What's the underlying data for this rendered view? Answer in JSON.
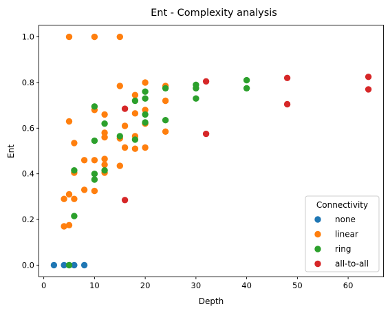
{
  "chart_data": {
    "type": "scatter",
    "title": "Ent - Complexity analysis",
    "xlabel": "Depth",
    "ylabel": "Ent",
    "xlim": [
      -0.9,
      66.9
    ],
    "ylim": [
      -0.05,
      1.05
    ],
    "xticks": [
      0,
      10,
      20,
      30,
      40,
      50,
      60
    ],
    "yticks": [
      0.0,
      0.2,
      0.4,
      0.6,
      0.8,
      1.0
    ],
    "xtick_labels": [
      "0",
      "10",
      "20",
      "30",
      "40",
      "50",
      "60"
    ],
    "ytick_labels": [
      "0.0",
      "0.2",
      "0.4",
      "0.6",
      "0.8",
      "1.0"
    ],
    "grid": false,
    "legend": {
      "title": "Connectivity",
      "placement": "lower-right"
    },
    "series": [
      {
        "name": "none",
        "color": "#1f77b4",
        "points": [
          [
            2,
            0.0
          ],
          [
            4,
            0.0
          ],
          [
            5,
            0.0
          ],
          [
            6,
            0.0
          ],
          [
            8,
            0.0
          ]
        ]
      },
      {
        "name": "linear",
        "color": "#ff7f0e",
        "points": [
          [
            4,
            0.29
          ],
          [
            4,
            0.17
          ],
          [
            5,
            1.0
          ],
          [
            5,
            0.63
          ],
          [
            5,
            0.31
          ],
          [
            5,
            0.175
          ],
          [
            6,
            0.535
          ],
          [
            6,
            0.405
          ],
          [
            6,
            0.29
          ],
          [
            8,
            0.46
          ],
          [
            8,
            0.33
          ],
          [
            10,
            1.0
          ],
          [
            10,
            0.68
          ],
          [
            10,
            0.46
          ],
          [
            10,
            0.325
          ],
          [
            12,
            0.66
          ],
          [
            12,
            0.58
          ],
          [
            12,
            0.56
          ],
          [
            12,
            0.465
          ],
          [
            12,
            0.44
          ],
          [
            12,
            0.405
          ],
          [
            15,
            1.0
          ],
          [
            15,
            0.785
          ],
          [
            15,
            0.555
          ],
          [
            15,
            0.435
          ],
          [
            16,
            0.61
          ],
          [
            16,
            0.515
          ],
          [
            18,
            0.745
          ],
          [
            18,
            0.665
          ],
          [
            18,
            0.565
          ],
          [
            18,
            0.51
          ],
          [
            20,
            0.8
          ],
          [
            20,
            0.68
          ],
          [
            20,
            0.62
          ],
          [
            20,
            0.515
          ],
          [
            24,
            0.785
          ],
          [
            24,
            0.72
          ],
          [
            24,
            0.585
          ]
        ]
      },
      {
        "name": "ring",
        "color": "#2ca02c",
        "points": [
          [
            5,
            0.0
          ],
          [
            6,
            0.415
          ],
          [
            6,
            0.215
          ],
          [
            10,
            0.695
          ],
          [
            10,
            0.545
          ],
          [
            10,
            0.4
          ],
          [
            10,
            0.375
          ],
          [
            12,
            0.62
          ],
          [
            12,
            0.415
          ],
          [
            15,
            0.565
          ],
          [
            18,
            0.72
          ],
          [
            18,
            0.55
          ],
          [
            20,
            0.76
          ],
          [
            20,
            0.73
          ],
          [
            20,
            0.66
          ],
          [
            20,
            0.625
          ],
          [
            24,
            0.775
          ],
          [
            24,
            0.635
          ],
          [
            30,
            0.79
          ],
          [
            30,
            0.775
          ],
          [
            30,
            0.73
          ],
          [
            40,
            0.81
          ],
          [
            40,
            0.775
          ]
        ]
      },
      {
        "name": "all-to-all",
        "color": "#d62728",
        "points": [
          [
            16,
            0.685
          ],
          [
            16,
            0.285
          ],
          [
            32,
            0.805
          ],
          [
            32,
            0.575
          ],
          [
            48,
            0.82
          ],
          [
            48,
            0.705
          ],
          [
            64,
            0.825
          ],
          [
            64,
            0.77
          ]
        ]
      }
    ]
  }
}
